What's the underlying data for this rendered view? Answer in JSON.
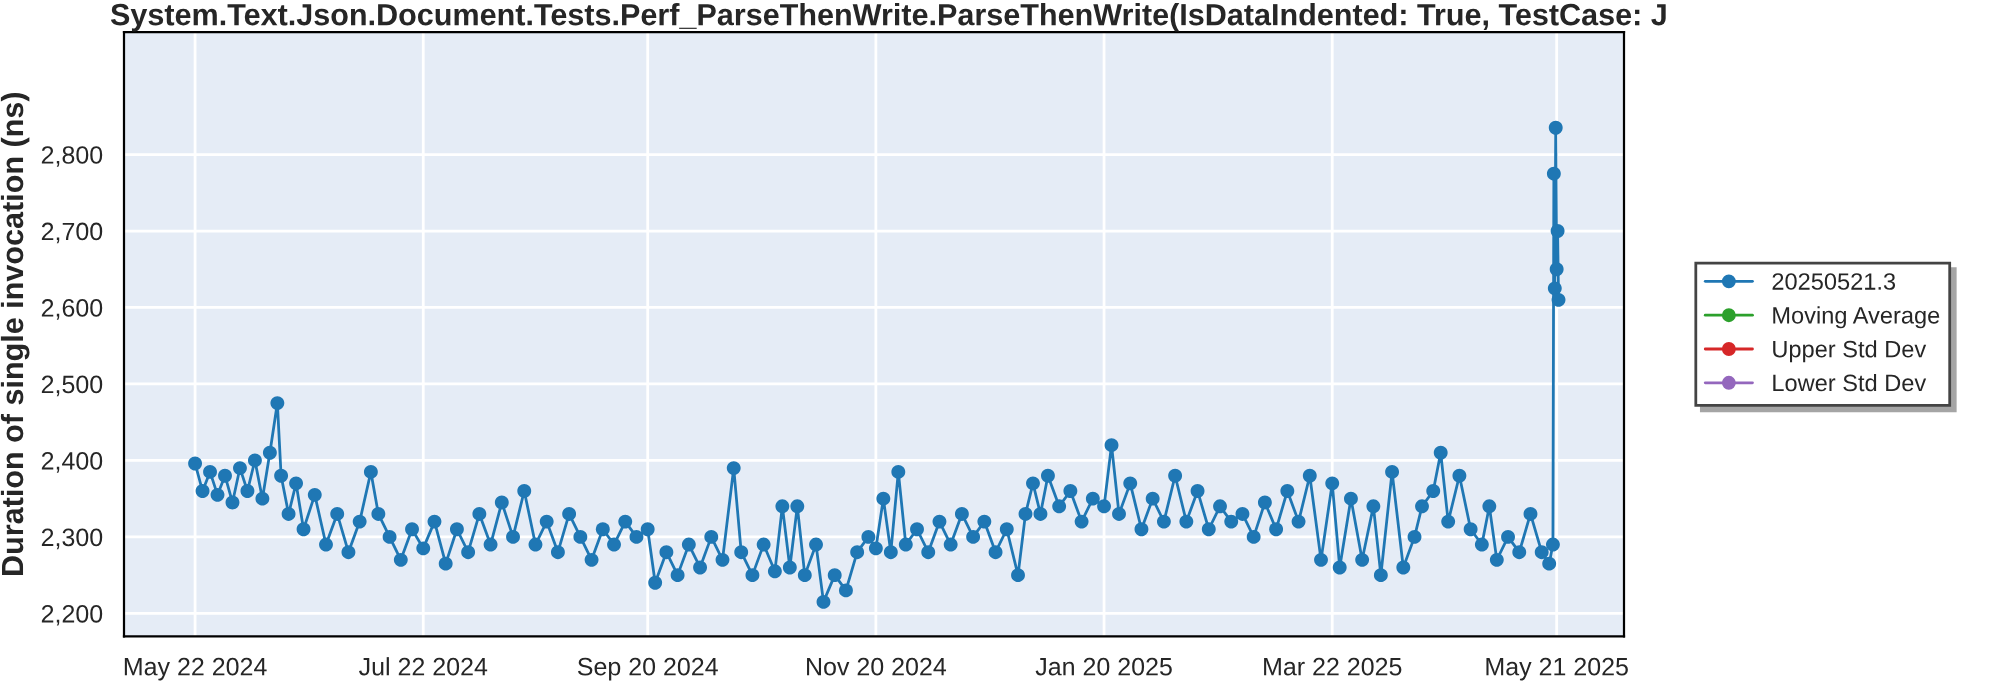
{
  "chart_data": {
    "type": "line",
    "title": "System.Text.Json.Document.Tests.Perf_ParseThenWrite.ParseThenWrite(IsDataIndented: True, TestCase: J",
    "ylabel": "Duration of single invocation (ns)",
    "xlim": [
      "2024-05-03",
      "2025-06-08"
    ],
    "xticks": [
      {
        "value": "2024-05-22",
        "label": "May 22 2024"
      },
      {
        "value": "2024-07-22",
        "label": "Jul 22 2024"
      },
      {
        "value": "2024-09-20",
        "label": "Sep 20 2024"
      },
      {
        "value": "2024-11-20",
        "label": "Nov 20 2024"
      },
      {
        "value": "2025-01-20",
        "label": "Jan 20 2025"
      },
      {
        "value": "2025-03-22",
        "label": "Mar 22 2025"
      },
      {
        "value": "2025-05-21",
        "label": "May 21 2025"
      }
    ],
    "ylim": [
      2170,
      2960
    ],
    "yticks": [
      {
        "value": 2200,
        "label": "2,200"
      },
      {
        "value": 2300,
        "label": "2,300"
      },
      {
        "value": 2400,
        "label": "2,400"
      },
      {
        "value": 2500,
        "label": "2,500"
      },
      {
        "value": 2600,
        "label": "2,600"
      },
      {
        "value": 2700,
        "label": "2,700"
      },
      {
        "value": 2800,
        "label": "2,800"
      }
    ],
    "grid": true,
    "legend": "right",
    "marker": "circle",
    "line_style": "solid",
    "series": [
      {
        "name": "20250521.3",
        "color": "#1f77b4",
        "x": [
          "2024-05-22",
          "2024-05-24",
          "2024-05-26",
          "2024-05-28",
          "2024-05-30",
          "2024-06-01",
          "2024-06-03",
          "2024-06-05",
          "2024-06-07",
          "2024-06-09",
          "2024-06-11",
          "2024-06-13",
          "2024-06-14",
          "2024-06-16",
          "2024-06-18",
          "2024-06-20",
          "2024-06-23",
          "2024-06-26",
          "2024-06-29",
          "2024-07-02",
          "2024-07-05",
          "2024-07-08",
          "2024-07-10",
          "2024-07-13",
          "2024-07-16",
          "2024-07-19",
          "2024-07-22",
          "2024-07-25",
          "2024-07-28",
          "2024-07-31",
          "2024-08-03",
          "2024-08-06",
          "2024-08-09",
          "2024-08-12",
          "2024-08-15",
          "2024-08-18",
          "2024-08-21",
          "2024-08-24",
          "2024-08-27",
          "2024-08-30",
          "2024-09-02",
          "2024-09-05",
          "2024-09-08",
          "2024-09-11",
          "2024-09-14",
          "2024-09-17",
          "2024-09-20",
          "2024-09-22",
          "2024-09-25",
          "2024-09-28",
          "2024-10-01",
          "2024-10-04",
          "2024-10-07",
          "2024-10-10",
          "2024-10-13",
          "2024-10-15",
          "2024-10-18",
          "2024-10-21",
          "2024-10-24",
          "2024-10-26",
          "2024-10-28",
          "2024-10-30",
          "2024-11-01",
          "2024-11-04",
          "2024-11-06",
          "2024-11-09",
          "2024-11-12",
          "2024-11-15",
          "2024-11-18",
          "2024-11-20",
          "2024-11-22",
          "2024-11-24",
          "2024-11-26",
          "2024-11-28",
          "2024-12-01",
          "2024-12-04",
          "2024-12-07",
          "2024-12-10",
          "2024-12-13",
          "2024-12-16",
          "2024-12-19",
          "2024-12-22",
          "2024-12-25",
          "2024-12-28",
          "2024-12-30",
          "2025-01-01",
          "2025-01-03",
          "2025-01-05",
          "2025-01-08",
          "2025-01-11",
          "2025-01-14",
          "2025-01-17",
          "2025-01-20",
          "2025-01-22",
          "2025-01-24",
          "2025-01-27",
          "2025-01-30",
          "2025-02-02",
          "2025-02-05",
          "2025-02-08",
          "2025-02-11",
          "2025-02-14",
          "2025-02-17",
          "2025-02-20",
          "2025-02-23",
          "2025-02-26",
          "2025-03-01",
          "2025-03-04",
          "2025-03-07",
          "2025-03-10",
          "2025-03-13",
          "2025-03-16",
          "2025-03-19",
          "2025-03-22",
          "2025-03-24",
          "2025-03-27",
          "2025-03-30",
          "2025-04-02",
          "2025-04-04",
          "2025-04-07",
          "2025-04-10",
          "2025-04-13",
          "2025-04-15",
          "2025-04-18",
          "2025-04-20",
          "2025-04-22",
          "2025-04-25",
          "2025-04-28",
          "2025-05-01",
          "2025-05-03",
          "2025-05-05",
          "2025-05-08",
          "2025-05-11",
          "2025-05-14",
          "2025-05-17",
          "2025-05-19",
          "2025-05-20",
          "2025-05-20T06:00",
          "2025-05-20T12:00",
          "2025-05-20T18:00",
          "2025-05-21",
          "2025-05-21T06:00",
          "2025-05-21T12:00"
        ],
        "values": [
          2396,
          2360,
          2385,
          2355,
          2380,
          2345,
          2390,
          2360,
          2400,
          2350,
          2410,
          2475,
          2380,
          2330,
          2370,
          2310,
          2355,
          2290,
          2330,
          2280,
          2320,
          2385,
          2330,
          2300,
          2270,
          2310,
          2285,
          2320,
          2265,
          2310,
          2280,
          2330,
          2290,
          2345,
          2300,
          2360,
          2290,
          2320,
          2280,
          2330,
          2300,
          2270,
          2310,
          2290,
          2320,
          2300,
          2310,
          2240,
          2280,
          2250,
          2290,
          2260,
          2300,
          2270,
          2390,
          2280,
          2250,
          2290,
          2255,
          2340,
          2260,
          2340,
          2250,
          2290,
          2215,
          2250,
          2230,
          2280,
          2300,
          2285,
          2350,
          2280,
          2385,
          2290,
          2310,
          2280,
          2320,
          2290,
          2330,
          2300,
          2320,
          2280,
          2310,
          2250,
          2330,
          2370,
          2330,
          2380,
          2340,
          2360,
          2320,
          2350,
          2340,
          2420,
          2330,
          2370,
          2310,
          2350,
          2320,
          2380,
          2320,
          2360,
          2310,
          2340,
          2320,
          2330,
          2300,
          2345,
          2310,
          2360,
          2320,
          2380,
          2270,
          2370,
          2260,
          2350,
          2270,
          2340,
          2250,
          2385,
          2260,
          2300,
          2340,
          2360,
          2410,
          2320,
          2380,
          2310,
          2290,
          2340,
          2270,
          2300,
          2280,
          2330,
          2280,
          2265,
          2290,
          2775,
          2625,
          2835,
          2650,
          2700,
          2610
        ]
      },
      {
        "name": "Moving Average",
        "color": "#2ca02c"
      },
      {
        "name": "Upper Std Dev",
        "color": "#d62728"
      },
      {
        "name": "Lower Std Dev",
        "color": "#9467bd"
      }
    ]
  }
}
